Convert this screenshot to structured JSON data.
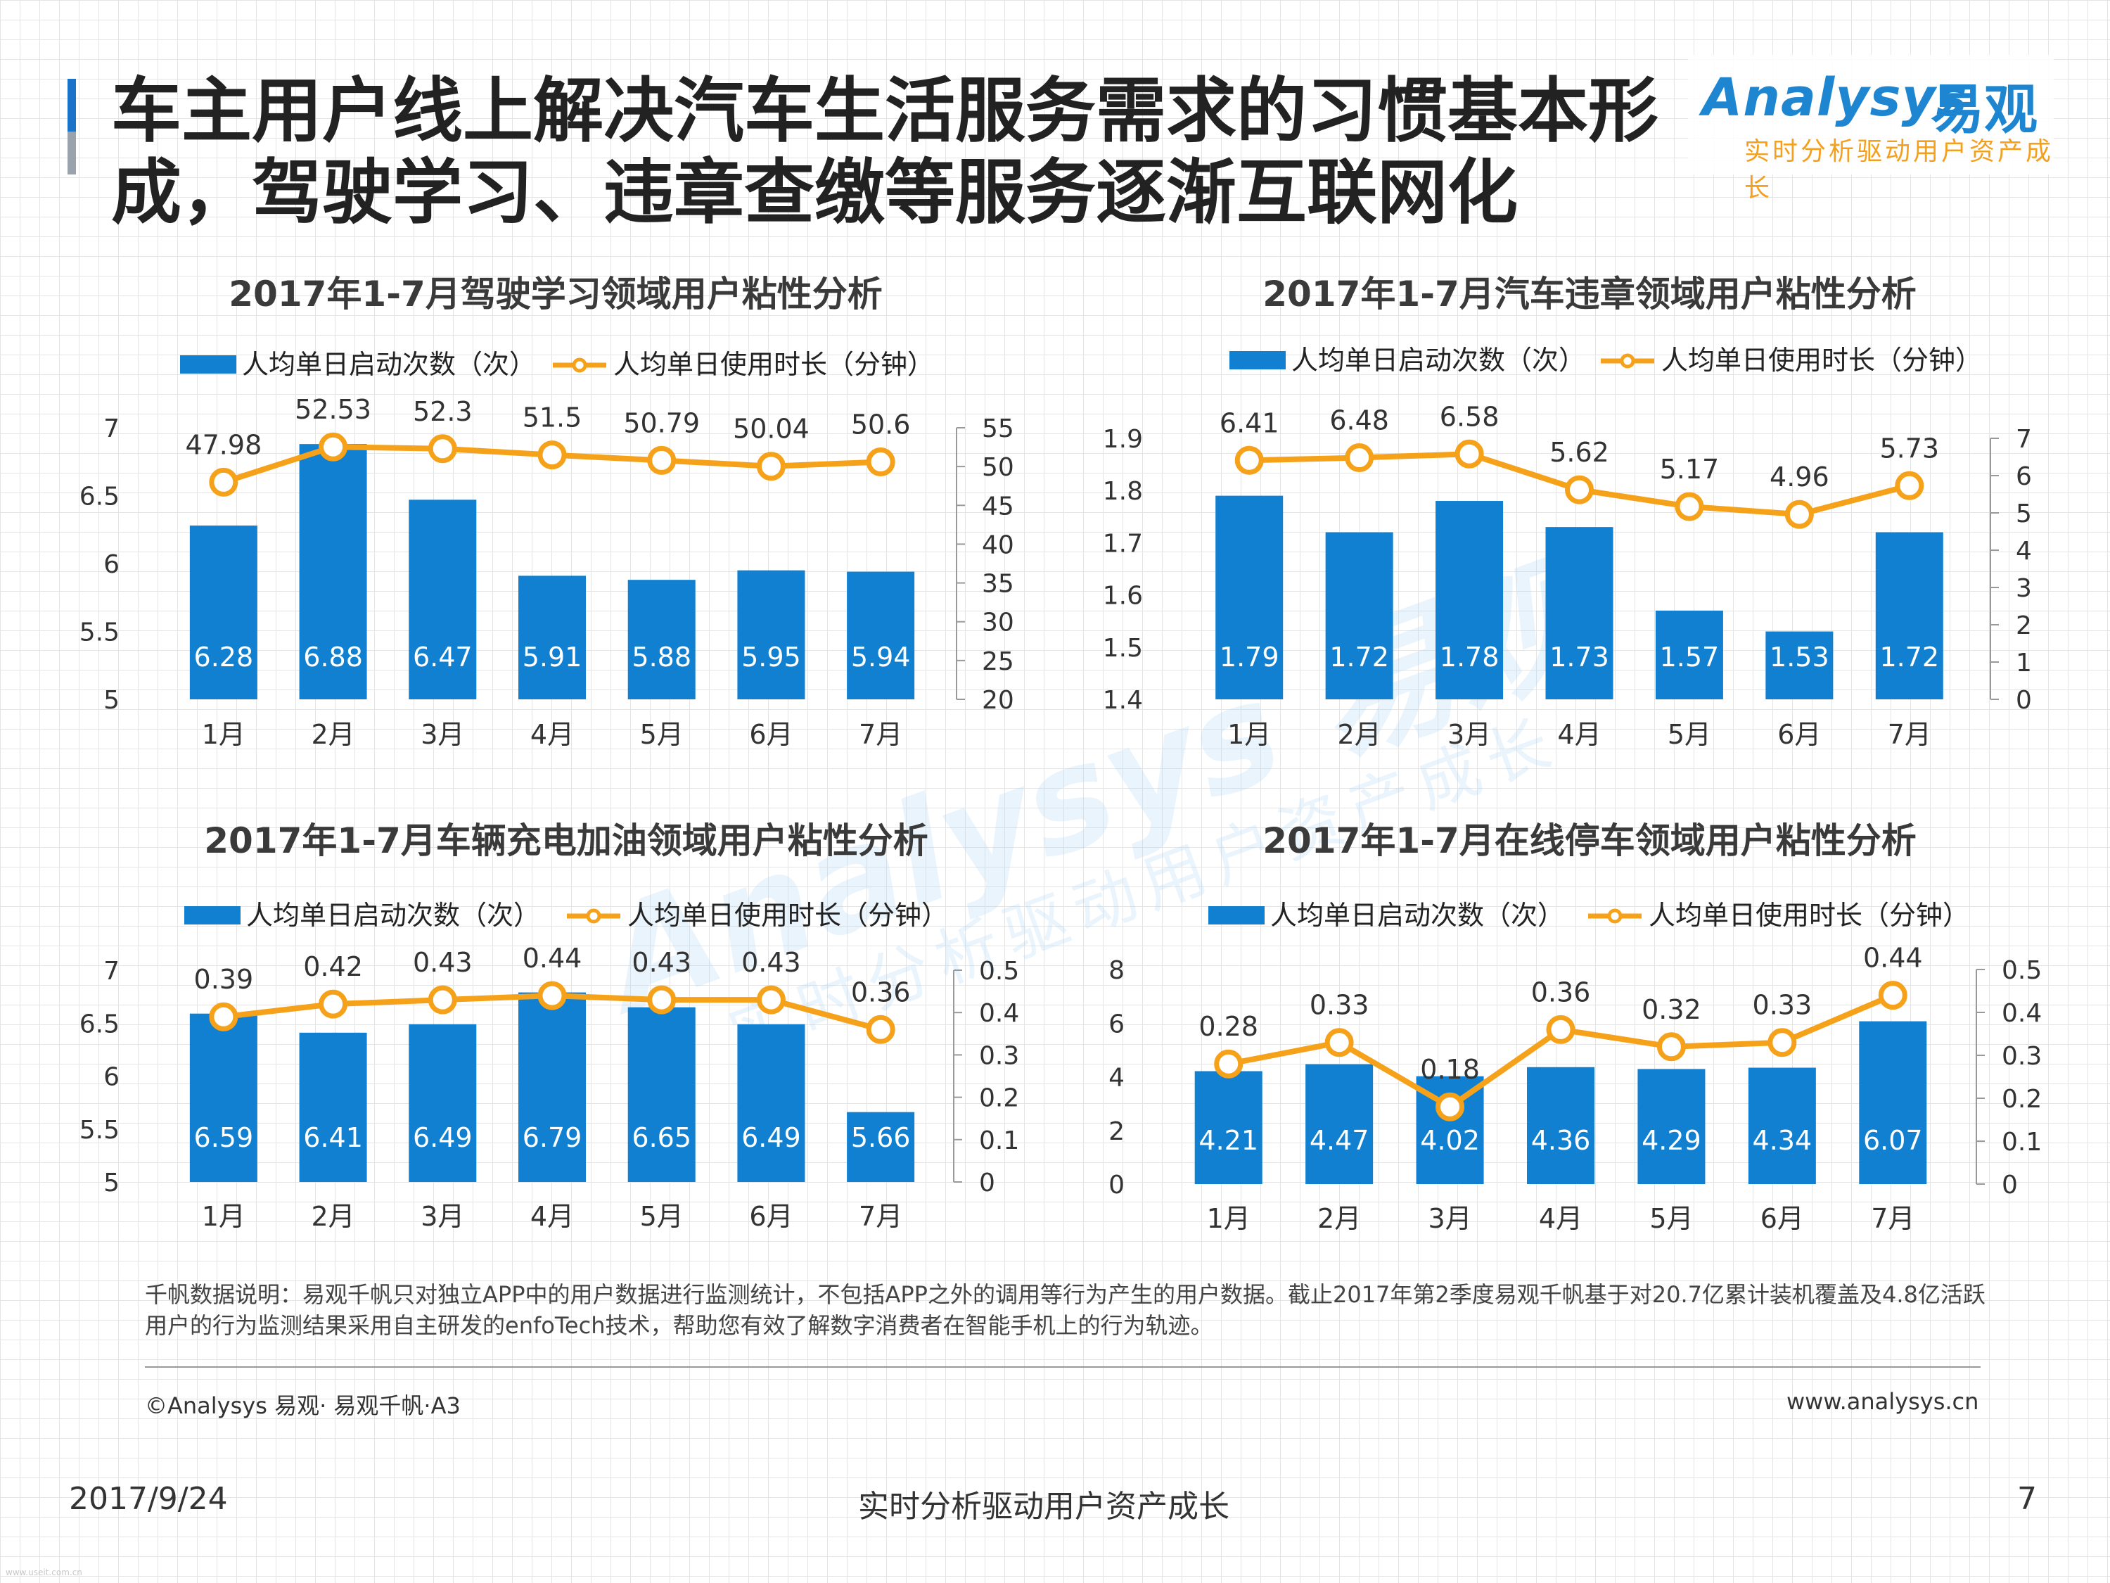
{
  "header": {
    "title": "车主用户线上解决汽车生活服务需求的习惯基本形成，驾驶学习、违章查缴等服务逐渐互联网化",
    "logo_main": "Analysys",
    "logo_cn": "易观",
    "logo_sub": "实时分析驱动用户资产成长"
  },
  "watermark": {
    "main": "Analysys 易观",
    "sub": "实时分析驱动用户资产成长"
  },
  "colors": {
    "bar": "#1180d0",
    "line": "#f5a21a",
    "accent": "#1a73c8"
  },
  "chart_data": [
    {
      "type": "bar+line",
      "title": "2017年1-7月驾驶学习领域用户粘性分析",
      "legend": {
        "bar": "人均单日启动次数（次）",
        "line": "人均单日使用时长（分钟）"
      },
      "categories": [
        "1月",
        "2月",
        "3月",
        "4月",
        "5月",
        "6月",
        "7月"
      ],
      "series": [
        {
          "name": "人均单日启动次数（次）",
          "kind": "bar",
          "axis": "left",
          "values": [
            6.28,
            6.88,
            6.47,
            5.91,
            5.88,
            5.95,
            5.94
          ]
        },
        {
          "name": "人均单日使用时长（分钟）",
          "kind": "line",
          "axis": "right",
          "values": [
            47.98,
            52.53,
            52.3,
            51.5,
            50.79,
            50.04,
            50.6
          ]
        }
      ],
      "left_axis": {
        "ylim": [
          5,
          7
        ],
        "ticks": [
          "5",
          "5.5",
          "6",
          "6.5",
          "7"
        ]
      },
      "right_axis": {
        "ylim": [
          20,
          55
        ],
        "ticks": [
          "20",
          "25",
          "30",
          "35",
          "40",
          "45",
          "50",
          "55"
        ]
      },
      "bar_labels": [
        "6.28",
        "6.88",
        "6.47",
        "5.91",
        "5.88",
        "5.95",
        "5.94"
      ],
      "line_labels": [
        "47.98",
        "52.53",
        "52.3",
        "51.5",
        "50.79",
        "50.04",
        "50.6"
      ]
    },
    {
      "type": "bar+line",
      "title": "2017年1-7月汽车违章领域用户粘性分析",
      "legend": {
        "bar": "人均单日启动次数（次）",
        "line": "人均单日使用时长（分钟）"
      },
      "categories": [
        "1月",
        "2月",
        "3月",
        "4月",
        "5月",
        "6月",
        "7月"
      ],
      "series": [
        {
          "name": "人均单日启动次数（次）",
          "kind": "bar",
          "axis": "left",
          "values": [
            1.79,
            1.72,
            1.78,
            1.73,
            1.57,
            1.53,
            1.72
          ]
        },
        {
          "name": "人均单日使用时长（分钟）",
          "kind": "line",
          "axis": "right",
          "values": [
            6.41,
            6.48,
            6.58,
            5.62,
            5.17,
            4.96,
            5.73
          ]
        }
      ],
      "left_axis": {
        "ylim": [
          1.4,
          1.9
        ],
        "ticks": [
          "1.4",
          "1.5",
          "1.6",
          "1.7",
          "1.8",
          "1.9"
        ]
      },
      "right_axis": {
        "ylim": [
          0,
          7
        ],
        "ticks": [
          "0",
          "1",
          "2",
          "3",
          "4",
          "5",
          "6",
          "7"
        ]
      },
      "bar_labels": [
        "1.79",
        "1.72",
        "1.78",
        "1.73",
        "1.57",
        "1.53",
        "1.72"
      ],
      "line_labels": [
        "6.41",
        "6.48",
        "6.58",
        "5.62",
        "5.17",
        "4.96",
        "5.73"
      ]
    },
    {
      "type": "bar+line",
      "title": "2017年1-7月车辆充电加油领域用户粘性分析",
      "legend": {
        "bar": "人均单日启动次数（次）",
        "line": "人均单日使用时长（分钟）"
      },
      "categories": [
        "1月",
        "2月",
        "3月",
        "4月",
        "5月",
        "6月",
        "7月"
      ],
      "series": [
        {
          "name": "人均单日启动次数（次）",
          "kind": "bar",
          "axis": "left",
          "values": [
            6.59,
            6.41,
            6.49,
            6.79,
            6.65,
            6.49,
            5.66
          ]
        },
        {
          "name": "人均单日使用时长（分钟）",
          "kind": "line",
          "axis": "right",
          "values": [
            0.39,
            0.42,
            0.43,
            0.44,
            0.43,
            0.43,
            0.36
          ]
        }
      ],
      "left_axis": {
        "ylim": [
          5,
          7
        ],
        "ticks": [
          "5",
          "5.5",
          "6",
          "6.5",
          "7"
        ]
      },
      "right_axis": {
        "ylim": [
          0,
          0.5
        ],
        "ticks": [
          "0",
          "0.1",
          "0.2",
          "0.3",
          "0.4",
          "0.5"
        ]
      },
      "bar_labels": [
        "6.59",
        "6.41",
        "6.49",
        "6.79",
        "6.65",
        "6.49",
        "5.66"
      ],
      "line_labels": [
        "0.39",
        "0.42",
        "0.43",
        "0.44",
        "0.43",
        "0.43",
        "0.36"
      ]
    },
    {
      "type": "bar+line",
      "title": "2017年1-7月在线停车领域用户粘性分析",
      "legend": {
        "bar": "人均单日启动次数（次）",
        "line": "人均单日使用时长（分钟）"
      },
      "categories": [
        "1月",
        "2月",
        "3月",
        "4月",
        "5月",
        "6月",
        "7月"
      ],
      "series": [
        {
          "name": "人均单日启动次数（次）",
          "kind": "bar",
          "axis": "left",
          "values": [
            4.21,
            4.47,
            4.02,
            4.36,
            4.29,
            4.34,
            6.07
          ]
        },
        {
          "name": "人均单日使用时长（分钟）",
          "kind": "line",
          "axis": "right",
          "values": [
            0.28,
            0.33,
            0.18,
            0.36,
            0.32,
            0.33,
            0.44
          ]
        }
      ],
      "left_axis": {
        "ylim": [
          0,
          8
        ],
        "ticks": [
          "0",
          "2",
          "4",
          "6",
          "8"
        ]
      },
      "right_axis": {
        "ylim": [
          0,
          0.5
        ],
        "ticks": [
          "0",
          "0.1",
          "0.2",
          "0.3",
          "0.4",
          "0.5"
        ]
      },
      "bar_labels": [
        "4.21",
        "4.47",
        "4.02",
        "4.36",
        "4.29",
        "4.34",
        "6.07"
      ],
      "line_labels": [
        "0.28",
        "0.33",
        "0.18",
        "0.36",
        "0.32",
        "0.33",
        "0.44"
      ]
    }
  ],
  "note": "千帆数据说明：易观千帆只对独立APP中的用户数据进行监测统计，不包括APP之外的调用等行为产生的用户数据。截止2017年第2季度易观千帆基于对20.7亿累计装机覆盖及4.8亿活跃用户的行为监测结果采用自主研发的enfoTech技术，帮助您有效了解数字消费者在智能手机上的行为轨迹。",
  "footer": {
    "copyright": "©Analysys 易观· 易观千帆·A3",
    "website": "www.analysys.cn",
    "date": "2017/9/24",
    "slogan": "实时分析驱动用户资产成长",
    "page": "7",
    "tiny": "www.useit.com.cn"
  }
}
